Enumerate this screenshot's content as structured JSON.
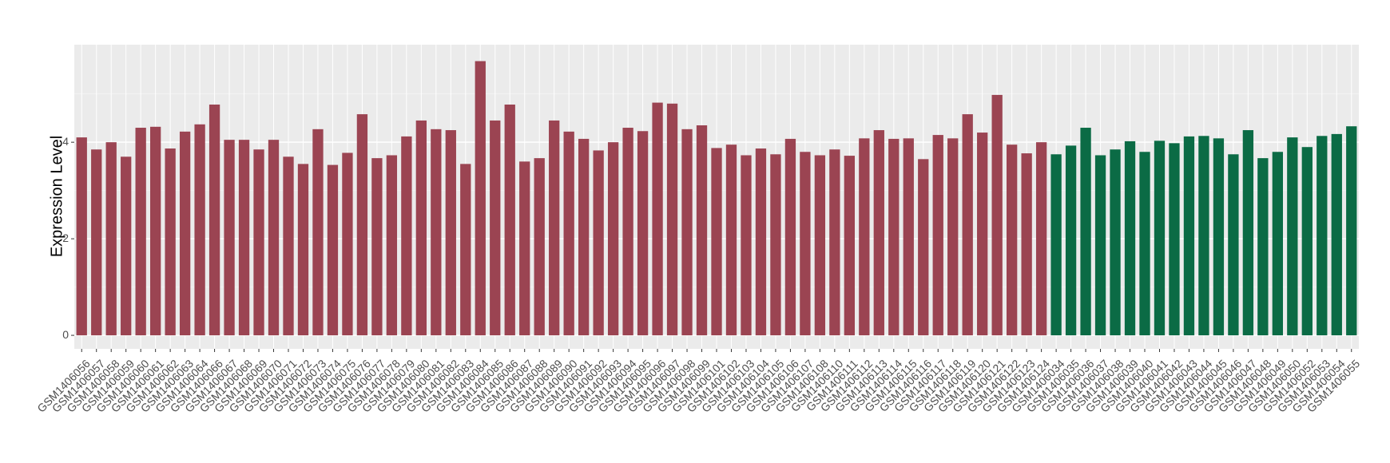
{
  "chart_data": {
    "type": "bar",
    "y_label": "Expression Level",
    "categories": [
      "GSM1406056",
      "GSM1406057",
      "GSM1406058",
      "GSM1406059",
      "GSM1406060",
      "GSM1406061",
      "GSM1406062",
      "GSM1406063",
      "GSM1406064",
      "GSM1406066",
      "GSM1406067",
      "GSM1406068",
      "GSM1406069",
      "GSM1406070",
      "GSM1406071",
      "GSM1406072",
      "GSM1406073",
      "GSM1406074",
      "GSM1406075",
      "GSM1406076",
      "GSM1406077",
      "GSM1406078",
      "GSM1406079",
      "GSM1406080",
      "GSM1406081",
      "GSM1406082",
      "GSM1406083",
      "GSM1406084",
      "GSM1406085",
      "GSM1406086",
      "GSM1406087",
      "GSM1406088",
      "GSM1406089",
      "GSM1406090",
      "GSM1406091",
      "GSM1406092",
      "GSM1406093",
      "GSM1406094",
      "GSM1406095",
      "GSM1406096",
      "GSM1406097",
      "GSM1406098",
      "GSM1406099",
      "GSM1406101",
      "GSM1406102",
      "GSM1406103",
      "GSM1406104",
      "GSM1406105",
      "GSM1406106",
      "GSM1406107",
      "GSM1406108",
      "GSM1406110",
      "GSM1406111",
      "GSM1406112",
      "GSM1406113",
      "GSM1406114",
      "GSM1406115",
      "GSM1406116",
      "GSM1406117",
      "GSM1406118",
      "GSM1406119",
      "GSM1406120",
      "GSM1406121",
      "GSM1406122",
      "GSM1406123",
      "GSM1406124",
      "GSM1406034",
      "GSM1406035",
      "GSM1406036",
      "GSM1406037",
      "GSM1406038",
      "GSM1406039",
      "GSM1406040",
      "GSM1406041",
      "GSM1406042",
      "GSM1406043",
      "GSM1406044",
      "GSM1406045",
      "GSM1406046",
      "GSM1406047",
      "GSM1406048",
      "GSM1406049",
      "GSM1406050",
      "GSM1406052",
      "GSM1406053",
      "GSM1406054",
      "GSM1406055"
    ],
    "series": [
      {
        "color": "#9b4452",
        "values": [
          4.1,
          3.85,
          4.0,
          3.7,
          4.3,
          4.32,
          3.87,
          4.22,
          4.37,
          4.78,
          4.05,
          4.05,
          3.85,
          4.05,
          3.7,
          3.55,
          4.27,
          3.53,
          3.78,
          4.58,
          3.67,
          3.73,
          4.12,
          4.45,
          4.27,
          4.25,
          3.55,
          5.68,
          4.45,
          4.78,
          3.6,
          3.67,
          4.45,
          4.22,
          4.07,
          3.83,
          4.0,
          4.3,
          4.23,
          4.82,
          4.8,
          4.27,
          4.35,
          3.88,
          3.95,
          3.73,
          3.87,
          3.75,
          4.07,
          3.8,
          3.73,
          3.85,
          3.72,
          4.08,
          4.25,
          4.07,
          4.08,
          3.65,
          4.15,
          4.08,
          4.58,
          4.2,
          4.98,
          3.95,
          3.77,
          4.0,
          null,
          null,
          null,
          null,
          null,
          null,
          null,
          null,
          null,
          null,
          null,
          null,
          null,
          null,
          null,
          null,
          null,
          null,
          null,
          null,
          null
        ]
      },
      {
        "color": "#0b6b45",
        "values": [
          null,
          null,
          null,
          null,
          null,
          null,
          null,
          null,
          null,
          null,
          null,
          null,
          null,
          null,
          null,
          null,
          null,
          null,
          null,
          null,
          null,
          null,
          null,
          null,
          null,
          null,
          null,
          null,
          null,
          null,
          null,
          null,
          null,
          null,
          null,
          null,
          null,
          null,
          null,
          null,
          null,
          null,
          null,
          null,
          null,
          null,
          null,
          null,
          null,
          null,
          null,
          null,
          null,
          null,
          null,
          null,
          null,
          null,
          null,
          null,
          null,
          null,
          null,
          null,
          null,
          null,
          3.75,
          3.93,
          4.3,
          3.73,
          3.85,
          4.02,
          3.8,
          4.03,
          3.98,
          4.12,
          4.13,
          4.08,
          3.75,
          4.25,
          3.67,
          3.8,
          4.1,
          3.9,
          4.13,
          4.17,
          4.33
        ]
      }
    ],
    "ylim": [
      -0.28,
      6.02
    ],
    "yticks": [
      0,
      2,
      4
    ],
    "y_minor_ticks": [
      1,
      3,
      5
    ],
    "grid": true
  }
}
